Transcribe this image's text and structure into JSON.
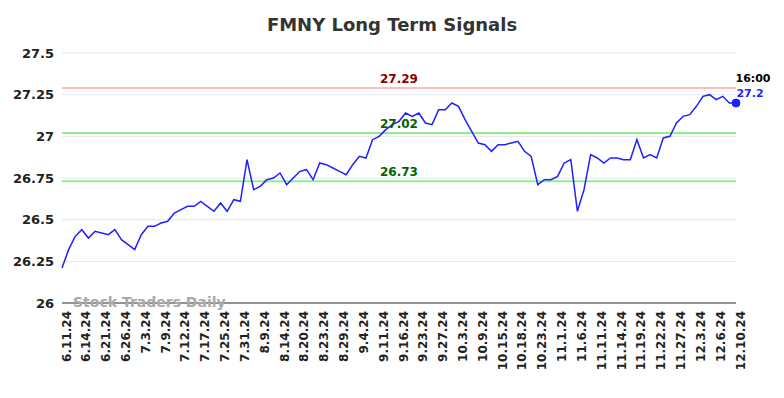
{
  "chart_data": {
    "type": "line",
    "title": "FMNY Long Term Signals",
    "watermark": "Stock Traders Daily",
    "categories": [
      "6.11.24",
      null,
      null,
      "6.14.24",
      null,
      null,
      "6.21.24",
      null,
      null,
      "6.26.24",
      null,
      null,
      "7.3.24",
      null,
      null,
      "7.9.24",
      null,
      null,
      "7.12.24",
      null,
      null,
      "7.17.24",
      null,
      null,
      "7.25.24",
      null,
      null,
      "7.31.24",
      null,
      null,
      "8.9.24",
      null,
      null,
      "8.14.24",
      null,
      null,
      "8.20.24",
      null,
      null,
      "8.23.24",
      null,
      null,
      "8.29.24",
      null,
      null,
      "9.4.24",
      null,
      null,
      "9.11.24",
      null,
      null,
      "9.16.24",
      null,
      null,
      "9.23.24",
      null,
      null,
      "9.27.24",
      null,
      null,
      "10.3.24",
      null,
      null,
      "10.9.24",
      null,
      null,
      "10.15.24",
      null,
      null,
      "10.18.24",
      null,
      null,
      "10.23.24",
      null,
      null,
      "11.1.24",
      null,
      null,
      "11.6.24",
      null,
      null,
      "11.11.24",
      null,
      null,
      "11.14.24",
      null,
      null,
      "11.19.24",
      null,
      null,
      "11.22.24",
      null,
      null,
      "11.27.24",
      null,
      null,
      "12.3.24",
      null,
      null,
      "12.6.24",
      null,
      null,
      "12.10.24"
    ],
    "values": [
      26.21,
      26.32,
      26.4,
      26.44,
      26.39,
      26.43,
      26.42,
      26.41,
      26.44,
      26.38,
      26.35,
      26.32,
      26.41,
      26.46,
      26.46,
      26.48,
      26.49,
      26.54,
      26.56,
      26.58,
      26.58,
      26.61,
      26.58,
      26.55,
      26.6,
      26.55,
      26.62,
      26.61,
      26.86,
      26.68,
      26.7,
      26.74,
      26.75,
      26.78,
      26.71,
      26.75,
      26.79,
      26.8,
      26.74,
      26.84,
      26.83,
      26.81,
      26.79,
      26.77,
      26.83,
      26.88,
      26.87,
      26.98,
      27.0,
      27.04,
      27.07,
      27.09,
      27.14,
      27.12,
      27.14,
      27.08,
      27.07,
      27.16,
      27.16,
      27.2,
      27.18,
      27.1,
      27.03,
      26.96,
      26.95,
      26.91,
      26.95,
      26.95,
      26.96,
      26.97,
      26.91,
      26.88,
      26.71,
      26.74,
      26.74,
      26.76,
      26.84,
      26.86,
      26.55,
      26.68,
      26.89,
      26.87,
      26.84,
      26.87,
      26.87,
      26.86,
      26.86,
      26.98,
      26.87,
      26.89,
      26.87,
      26.99,
      27.0,
      27.08,
      27.12,
      27.13,
      27.18,
      27.24,
      27.25,
      27.22,
      27.24,
      27.2,
      27.2
    ],
    "color": "#1f1fff",
    "ylim": [
      26,
      27.5
    ],
    "yticks": [
      26,
      26.25,
      26.5,
      26.75,
      27,
      27.25,
      27.5
    ],
    "grid": true,
    "reference_lines": [
      {
        "value": 27.29,
        "color": "#ffbcbc"
      },
      {
        "value": 27.02,
        "color": "#90ee90"
      },
      {
        "value": 26.73,
        "color": "#90ee90"
      }
    ],
    "last_point_label": "16:00"
  }
}
